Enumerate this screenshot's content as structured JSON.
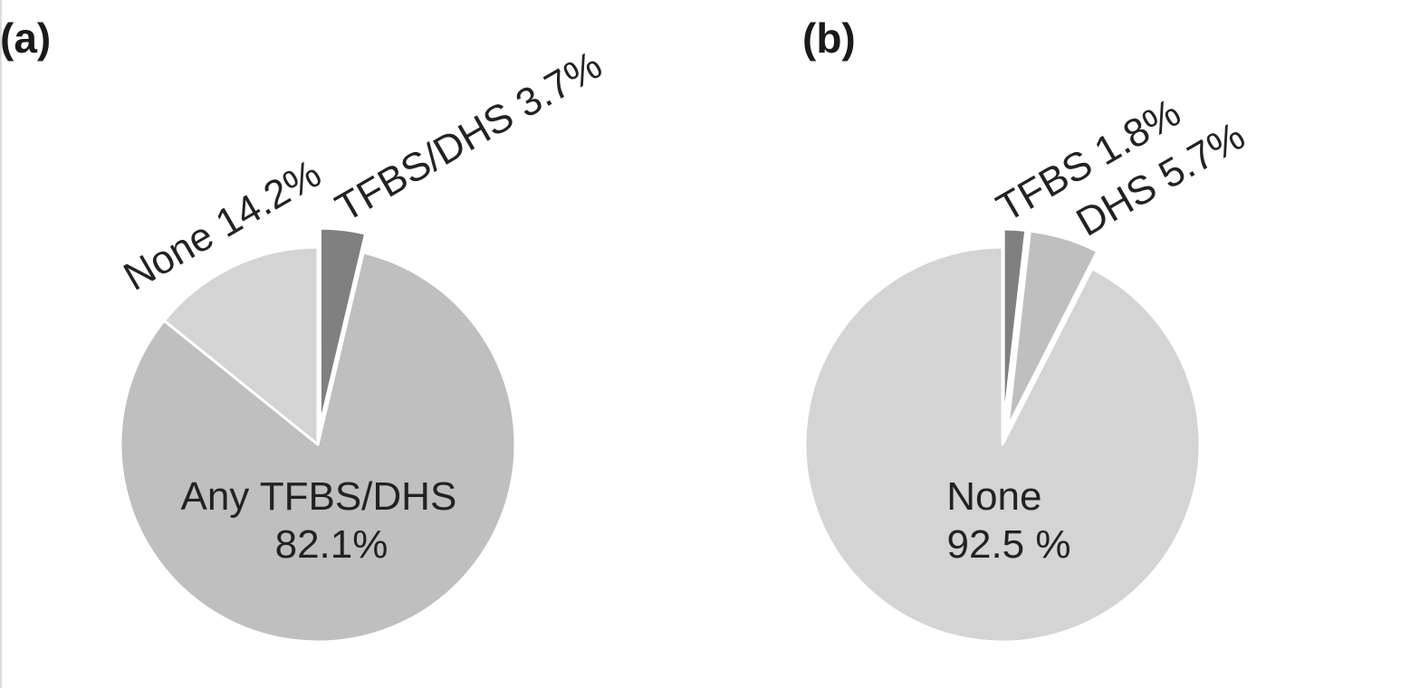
{
  "chart_data": [
    {
      "type": "pie",
      "panel_label": "(a)",
      "slices": [
        {
          "label": "TFBS/DHS 3.7%",
          "value": 3.7,
          "color": "#808080",
          "exploded": true,
          "label_lines": [
            "TFBS/DHS 3.7%"
          ]
        },
        {
          "label": "Any TFBS/DHS 82.1%",
          "value": 82.1,
          "color": "#bfbfbf",
          "exploded": false,
          "label_lines": [
            "Any TFBS/DHS",
            "82.1%"
          ]
        },
        {
          "label": "None 14.2%",
          "value": 14.2,
          "color": "#d4d4d4",
          "exploded": false,
          "label_lines": [
            "None 14.2%"
          ]
        }
      ]
    },
    {
      "type": "pie",
      "panel_label": "(b)",
      "slices": [
        {
          "label": "TFBS 1.8%",
          "value": 1.8,
          "color": "#808080",
          "exploded": true,
          "label_lines": [
            "TFBS 1.8%"
          ]
        },
        {
          "label": "DHS 5.7%",
          "value": 5.7,
          "color": "#bfbfbf",
          "exploded": true,
          "label_lines": [
            "DHS 5.7%"
          ]
        },
        {
          "label": "None 92.5 %",
          "value": 92.5,
          "color": "#d4d4d4",
          "exploded": false,
          "label_lines": [
            "None",
            "92.5 %"
          ]
        }
      ]
    }
  ]
}
